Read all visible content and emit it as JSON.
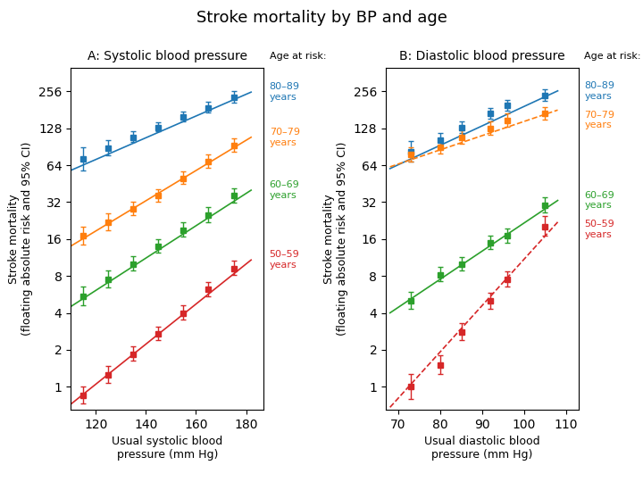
{
  "title": "Stroke mortality by BP and age",
  "chart_data": [
    {
      "type": "errorbar",
      "title": "A: Systolic blood pressure",
      "x_label": "Usual systolic blood\npressure (mm Hg)",
      "y_label": "Stroke mortality\n(floating absolute risk and 95% CI)",
      "log": "y",
      "xlim": [
        110,
        187
      ],
      "xticks": [
        120,
        140,
        160,
        180
      ],
      "ylim": [
        0.65,
        400
      ],
      "yticks": [
        1,
        2,
        4,
        8,
        16,
        32,
        64,
        128,
        256
      ],
      "annotations": [
        "Age at risk:"
      ],
      "series": [
        {
          "name": "80–89\nyears",
          "marker": "square",
          "line_style": "solid",
          "x": [
            115,
            125,
            135,
            145,
            155,
            165,
            175
          ],
          "values": [
            72,
            88,
            108,
            130,
            158,
            188,
            228
          ],
          "yerr_lo": [
            14,
            11,
            9,
            10,
            13,
            16,
            22
          ],
          "yerr_hi": [
            18,
            14,
            12,
            13,
            16,
            22,
            30
          ],
          "line_x": [
            110,
            182
          ],
          "line_y": [
            58,
            252
          ]
        },
        {
          "name": "70–79\nyears",
          "marker": "square",
          "line_style": "solid",
          "x": [
            115,
            125,
            135,
            145,
            155,
            165,
            175
          ],
          "values": [
            17,
            22,
            28,
            36,
            50,
            68,
            92
          ],
          "yerr_lo": [
            2.5,
            3,
            3,
            4,
            5,
            7,
            10
          ],
          "yerr_hi": [
            3,
            4,
            4,
            5,
            7,
            10,
            13
          ],
          "line_x": [
            110,
            182
          ],
          "line_y": [
            14,
            108
          ]
        },
        {
          "name": "60–69\nyears",
          "marker": "square",
          "line_style": "solid",
          "x": [
            115,
            125,
            135,
            145,
            155,
            165,
            175
          ],
          "values": [
            5.5,
            7.5,
            10,
            14,
            19,
            25,
            36
          ],
          "yerr_lo": [
            0.9,
            1.0,
            1.2,
            1.6,
            2.2,
            3.2,
            4.5
          ],
          "yerr_hi": [
            1.1,
            1.3,
            1.5,
            2.0,
            2.8,
            4.0,
            5.5
          ],
          "line_x": [
            110,
            182
          ],
          "line_y": [
            4.5,
            40
          ]
        },
        {
          "name": "50–59\nyears",
          "marker": "square",
          "line_style": "solid",
          "x": [
            115,
            125,
            135,
            145,
            155,
            165,
            175
          ],
          "values": [
            0.85,
            1.25,
            1.85,
            2.7,
            4.0,
            6.2,
            9.2
          ],
          "yerr_lo": [
            0.12,
            0.18,
            0.22,
            0.3,
            0.45,
            0.75,
            1.1
          ],
          "yerr_hi": [
            0.16,
            0.22,
            0.28,
            0.38,
            0.58,
            0.95,
            1.4
          ],
          "line_x": [
            110,
            182
          ],
          "line_y": [
            0.72,
            10.8
          ]
        }
      ]
    },
    {
      "type": "errorbar",
      "title": "B: Diastolic blood pressure",
      "x_label": "Usual diastolic blood\npressure (mm Hg)",
      "y_label": "Stroke mortality\n(floating absolute risk and 95% CI)",
      "log": "y",
      "xlim": [
        67,
        113
      ],
      "xticks": [
        70,
        80,
        90,
        100,
        110
      ],
      "ylim": [
        0.65,
        400
      ],
      "yticks": [
        1,
        2,
        4,
        8,
        16,
        32,
        64,
        128,
        256
      ],
      "annotations": [
        "Age at risk:"
      ],
      "series": [
        {
          "name": "80–89\nyears",
          "marker": "square",
          "line_style": "solid",
          "x": [
            73,
            80,
            85,
            92,
            96,
            105
          ],
          "values": [
            82,
            102,
            130,
            168,
            195,
            235
          ],
          "yerr_lo": [
            14,
            12,
            13,
            16,
            18,
            22
          ],
          "yerr_hi": [
            18,
            15,
            16,
            20,
            24,
            30
          ],
          "line_x": [
            68,
            108
          ],
          "line_y": [
            60,
            258
          ]
        },
        {
          "name": "70–79\nyears",
          "marker": "square",
          "line_style": "dashed",
          "x": [
            73,
            80,
            85,
            92,
            96,
            105
          ],
          "values": [
            78,
            90,
            108,
            128,
            148,
            168
          ],
          "yerr_lo": [
            10,
            10,
            12,
            14,
            16,
            18
          ],
          "yerr_hi": [
            12,
            12,
            15,
            17,
            20,
            22
          ],
          "line_x": [
            68,
            108
          ],
          "line_y": [
            62,
            180
          ]
        },
        {
          "name": "60–69\nyears",
          "marker": "square",
          "line_style": "solid",
          "x": [
            73,
            80,
            85,
            92,
            96,
            105
          ],
          "values": [
            5.0,
            8.2,
            10,
            15,
            17,
            30
          ],
          "yerr_lo": [
            0.7,
            1.0,
            1.1,
            1.7,
            2.0,
            3.8
          ],
          "yerr_hi": [
            0.9,
            1.3,
            1.4,
            2.1,
            2.6,
            4.8
          ],
          "line_x": [
            68,
            108
          ],
          "line_y": [
            4.0,
            33
          ]
        },
        {
          "name": "50–59\nyears",
          "marker": "square",
          "line_style": "dashed",
          "x": [
            73,
            80,
            85,
            92,
            96,
            105
          ],
          "values": [
            1.0,
            1.5,
            2.8,
            5.0,
            7.5,
            20
          ],
          "yerr_lo": [
            0.2,
            0.22,
            0.38,
            0.65,
            0.95,
            3.0
          ],
          "yerr_hi": [
            0.28,
            0.3,
            0.5,
            0.85,
            1.25,
            4.5
          ],
          "line_x": [
            68,
            108
          ],
          "line_y": [
            0.68,
            22
          ]
        }
      ]
    }
  ]
}
